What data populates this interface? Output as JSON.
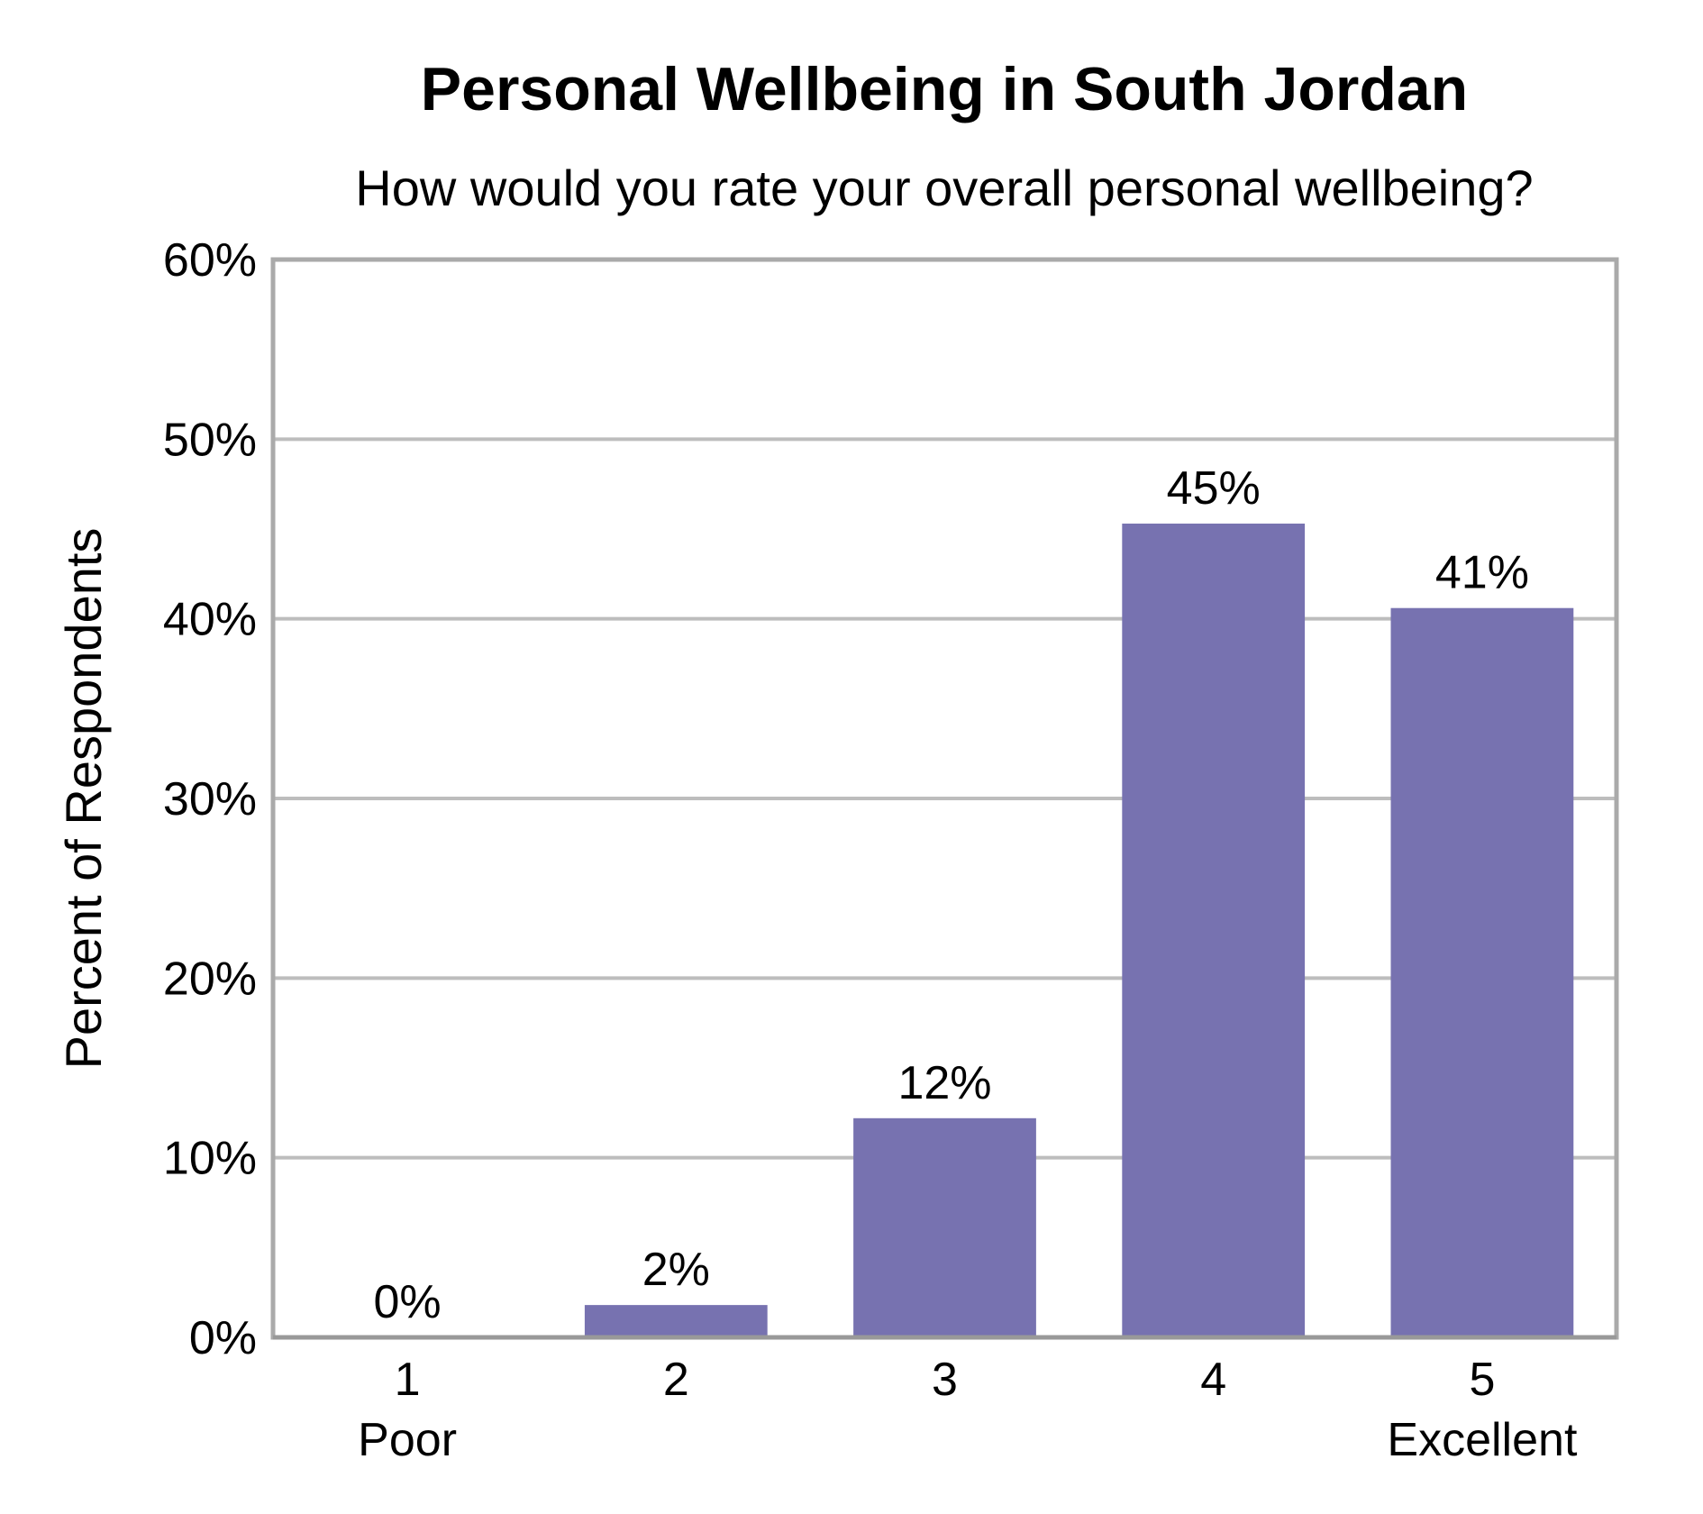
{
  "chart_data": {
    "type": "bar",
    "title": "Personal Wellbeing in South Jordan",
    "subtitle": "How would you rate your overall personal wellbeing?",
    "ylabel": "Percent of Respondents",
    "xlabel": "",
    "categories": [
      "1",
      "2",
      "3",
      "4",
      "5"
    ],
    "category_sublabels": [
      "Poor",
      "",
      "",
      "",
      "Excellent"
    ],
    "values": [
      0,
      2,
      12,
      45,
      41
    ],
    "bar_heights": [
      0,
      1.8,
      12.2,
      45.3,
      40.6
    ],
    "data_labels": [
      "0%",
      "2%",
      "12%",
      "45%",
      "41%"
    ],
    "ylim": [
      0,
      60
    ],
    "yticks": [
      0,
      10,
      20,
      30,
      40,
      50,
      60
    ],
    "ytick_labels": [
      "0%",
      "10%",
      "20%",
      "30%",
      "40%",
      "50%",
      "60%"
    ],
    "grid": true,
    "legend": "none",
    "colors": {
      "bar": "#7772b0",
      "grid": "#bdbdbd",
      "frame": "#aaaaaa"
    }
  }
}
